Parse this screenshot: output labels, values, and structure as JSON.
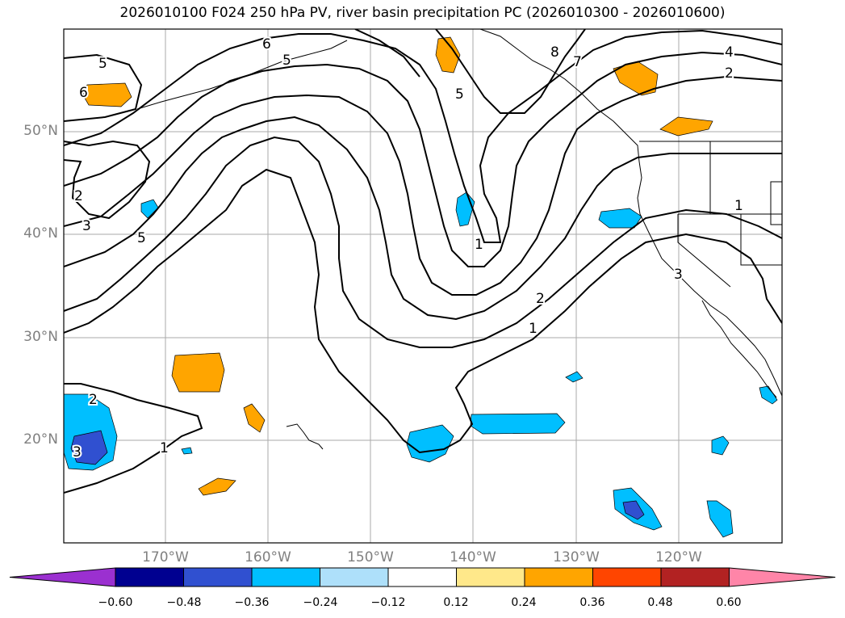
{
  "title": "2026010100 F024 250 hPa PV, river basin precipitation PC (2026010300 - 2026010600)",
  "lat_labels": [
    "50°N",
    "40°N",
    "30°N",
    "20°N"
  ],
  "lon_labels": [
    "170°W",
    "160°W",
    "150°W",
    "140°W",
    "130°W",
    "120°W"
  ],
  "pv_contour_labels": [
    "1",
    "2",
    "3",
    "4",
    "5",
    "6",
    "7",
    "8"
  ],
  "colorbar": {
    "ticks": [
      "−0.60",
      "−0.48",
      "−0.36",
      "−0.24",
      "−0.12",
      "0.12",
      "0.24",
      "0.36",
      "0.48",
      "0.60"
    ],
    "colors": [
      "#9b30d0",
      "#000090",
      "#3050d0",
      "#00bfff",
      "#aee0fa",
      "#ffffff",
      "#ffe88a",
      "#ffa500",
      "#ff4500",
      "#b22222",
      "#ff85a8",
      "#ff85a8"
    ]
  },
  "colors": {
    "grid": "#aaaaaa",
    "contour": "#000000",
    "coast": "#000000"
  }
}
